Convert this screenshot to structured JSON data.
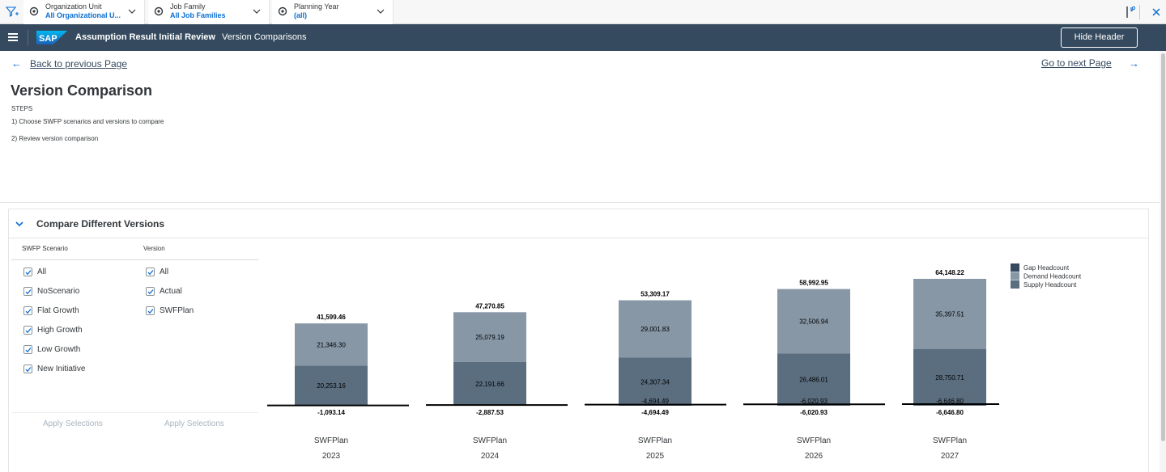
{
  "filter_bar": {
    "filters": [
      {
        "label": "Organization Unit",
        "value": "All Organizational U..."
      },
      {
        "label": "Job Family",
        "value": "All Job Families"
      },
      {
        "label": "Planning Year",
        "value": "(all)"
      }
    ]
  },
  "shell": {
    "app_title": "Assumption Result Initial Review",
    "page_name": "Version Comparisons",
    "hide_header_label": "Hide Header"
  },
  "nav": {
    "back_label": "Back to previous Page",
    "next_label": "Go to next Page"
  },
  "page": {
    "title": "Version Comparison",
    "steps_heading": "STEPS",
    "step1": "1) Choose SWFP scenarios and versions to compare",
    "step2": "2) Review version comparison"
  },
  "panel": {
    "title": "Compare Different Versions",
    "scenario_header": "SWFP Scenario",
    "version_header": "Version",
    "scenarios": [
      "All",
      "NoScenario",
      "Flat Growth",
      "High Growth",
      "Low Growth",
      "New Initiative"
    ],
    "versions": [
      "All",
      "Actual",
      "SWFPlan"
    ],
    "apply_label_left": "Apply Selections",
    "apply_label_right": "Apply Selections"
  },
  "colors": {
    "shell_bg": "#354a5f",
    "accent": "#0a6ed1",
    "gap": "#354a5f",
    "demand": "#8797a6",
    "supply": "#5b6e80"
  },
  "chart_data": {
    "type": "bar",
    "stacked": true,
    "categories": [
      "SWFPlan 2023",
      "SWFPlan 2024",
      "SWFPlan 2025",
      "SWFPlan 2026",
      "SWFPlan 2027"
    ],
    "version_labels": [
      "SWFPlan",
      "SWFPlan",
      "SWFPlan",
      "SWFPlan",
      "SWFPlan"
    ],
    "years": [
      "2023",
      "2024",
      "2025",
      "2026",
      "2027"
    ],
    "series": [
      {
        "name": "Supply Headcount",
        "values": [
          20253.16,
          22191.66,
          24307.34,
          26486.01,
          28750.71
        ]
      },
      {
        "name": "Demand Headcount",
        "values": [
          21346.3,
          25079.19,
          29001.83,
          32506.94,
          35397.51
        ]
      },
      {
        "name": "Gap Headcount",
        "values": [
          -1093.14,
          -2887.53,
          -4694.49,
          -6020.93,
          -6646.8
        ]
      }
    ],
    "gap_inner_labels": [
      "",
      "",
      "-4,694.49",
      "-6,020.93",
      "-6,646.80"
    ],
    "totals": [
      "41,599.46",
      "47,270.85",
      "53,309.17",
      "58,992.95",
      "64,148.22"
    ],
    "supply_labels": [
      "20,253.16",
      "22,191.66",
      "24,307.34",
      "26,486.01",
      "28,750.71"
    ],
    "demand_labels": [
      "21,346.30",
      "25,079.19",
      "29,001.83",
      "32,506.94",
      "35,397.51"
    ],
    "gap_labels": [
      "-1,093.14",
      "-2,887.53",
      "-4,694.49",
      "-6,020.93",
      "-6,646.80"
    ],
    "legend": [
      "Gap Headcount",
      "Demand Headcount",
      "Supply Headcount"
    ],
    "legend_position": "top-right",
    "grid": false
  }
}
